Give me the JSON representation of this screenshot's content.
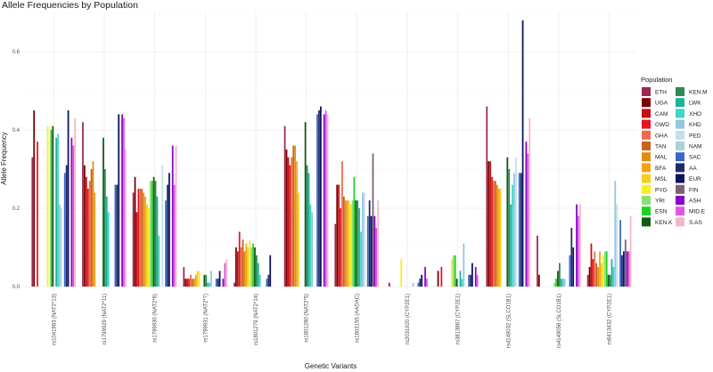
{
  "chart_data": {
    "type": "bar",
    "title": "Allele Frequencies by Population",
    "xlabel": "Genetic Variants",
    "ylabel": "Allele Frequency",
    "ylim": [
      0,
      0.7
    ],
    "yticks": [
      0.0,
      0.2,
      0.4,
      0.6
    ],
    "ytick_labels": [
      "0.0",
      "0.2",
      "0.4",
      "0.6"
    ],
    "grid": true,
    "legend_title": "Population",
    "legend_position": "right",
    "categories": [
      "rs1041983 (NAT2*13)",
      "rs1799929 (NAT2*11)",
      "rs1799930 (NAT2*6)",
      "rs1799931 (NAT2*7)",
      "rs1801279 (NAT2*14)",
      "rs1801280 (NAT2*5)",
      "rs1803155 (AADAC)",
      "rs2031920 (CYP2E1)",
      "rs3813867 (CYP2E1)",
      "rs4149032 (SLCO1B1)",
      "rs4149056 (SLCO1B1)",
      "rs6413432 (CYP2E1)"
    ],
    "series": [
      {
        "name": "ETH",
        "color": "#9e2a4e",
        "values": [
          0.33,
          0.42,
          0.24,
          0.05,
          0.01,
          0.41,
          0.16,
          0.0,
          0.0,
          0.46,
          0.13,
          0.03
        ]
      },
      {
        "name": "UGA",
        "color": "#7a0000",
        "values": [
          0.45,
          0.31,
          0.28,
          0.02,
          0.1,
          0.35,
          0.26,
          0.0,
          0.04,
          0.32,
          0.03,
          0.05
        ]
      },
      {
        "name": "CAM",
        "color": "#c41010",
        "values": [
          0.0,
          0.28,
          0.19,
          0.02,
          0.09,
          0.33,
          0.26,
          0.01,
          0.0,
          0.32,
          0.0,
          0.11
        ]
      },
      {
        "name": "GWD",
        "color": "#e8141e",
        "values": [
          0.37,
          0.25,
          0.25,
          0.02,
          0.14,
          0.31,
          0.2,
          0.0,
          0.05,
          0.28,
          0.0,
          0.07
        ]
      },
      {
        "name": "GHA",
        "color": "#ef6b4c",
        "values": [
          0.0,
          0.27,
          0.25,
          0.03,
          0.1,
          0.33,
          0.32,
          0.0,
          0.0,
          0.27,
          0.0,
          0.09
        ]
      },
      {
        "name": "TAN",
        "color": "#c9621a",
        "values": [
          0.0,
          0.3,
          0.25,
          0.02,
          0.12,
          0.36,
          0.23,
          0.0,
          0.0,
          0.27,
          0.0,
          0.06
        ]
      },
      {
        "name": "MAL",
        "color": "#e08f0e",
        "values": [
          0.0,
          0.32,
          0.24,
          0.02,
          0.09,
          0.36,
          0.22,
          0.0,
          0.0,
          0.26,
          0.0,
          0.05
        ]
      },
      {
        "name": "BFA",
        "color": "#f0a318",
        "values": [
          0.0,
          0.24,
          0.23,
          0.03,
          0.11,
          0.32,
          0.22,
          0.0,
          0.0,
          0.25,
          0.0,
          0.09
        ]
      },
      {
        "name": "MSL",
        "color": "#f7ce1c",
        "values": [
          0.0,
          0.0,
          0.21,
          0.04,
          0.1,
          0.24,
          0.22,
          0.0,
          0.0,
          0.25,
          0.0,
          0.06
        ]
      },
      {
        "name": "PYG",
        "color": "#f7f01e",
        "values": [
          0.41,
          0.0,
          0.2,
          0.04,
          0.12,
          0.0,
          0.21,
          0.07,
          0.07,
          0.0,
          0.0,
          0.08
        ]
      },
      {
        "name": "YRI",
        "color": "#8fdc7a",
        "values": [
          0.0,
          0.0,
          0.27,
          0.0,
          0.1,
          0.0,
          0.22,
          0.0,
          0.08,
          0.0,
          0.01,
          0.09
        ]
      },
      {
        "name": "ESN",
        "color": "#21d121",
        "values": [
          0.4,
          0.0,
          0.27,
          0.0,
          0.11,
          0.0,
          0.28,
          0.0,
          0.08,
          0.0,
          0.02,
          0.09
        ]
      },
      {
        "name": "KEN.K",
        "color": "#0f5c12",
        "values": [
          0.41,
          0.38,
          0.28,
          0.03,
          0.1,
          0.42,
          0.22,
          0.0,
          0.02,
          0.33,
          0.04,
          0.03
        ]
      },
      {
        "name": "KEN.M",
        "color": "#2e8b57",
        "values": [
          0.0,
          0.3,
          0.27,
          0.03,
          0.08,
          0.31,
          0.22,
          0.0,
          0.0,
          0.3,
          0.06,
          0.03
        ]
      },
      {
        "name": "LWK",
        "color": "#1eb39c",
        "values": [
          0.38,
          0.23,
          0.23,
          0.01,
          0.06,
          0.29,
          0.2,
          0.0,
          0.04,
          0.21,
          0.02,
          0.07
        ]
      },
      {
        "name": "XHO",
        "color": "#3ed6c8",
        "values": [
          0.39,
          0.19,
          0.13,
          0.01,
          0.03,
          0.21,
          0.14,
          0.0,
          0.02,
          0.26,
          0.02,
          0.05
        ]
      },
      {
        "name": "KHD",
        "color": "#8fc8e0",
        "values": [
          0.21,
          0.0,
          0.0,
          0.04,
          0.0,
          0.19,
          0.24,
          0.01,
          0.11,
          0.29,
          0.02,
          0.27
        ]
      },
      {
        "name": "PED",
        "color": "#c3e0ea",
        "values": [
          0.2,
          0.0,
          0.31,
          0.0,
          0.0,
          0.0,
          0.24,
          0.0,
          0.0,
          0.33,
          0.0,
          0.21
        ]
      },
      {
        "name": "NAM",
        "color": "#a7d3dc",
        "values": [
          0.0,
          0.0,
          0.0,
          0.0,
          0.0,
          0.0,
          0.0,
          0.0,
          0.0,
          0.0,
          0.0,
          0.0
        ]
      },
      {
        "name": "SAC",
        "color": "#3a68c9",
        "values": [
          0.29,
          0.26,
          0.22,
          0.02,
          0.02,
          0.44,
          0.18,
          0.01,
          0.03,
          0.29,
          0.08,
          0.17
        ]
      },
      {
        "name": "AA",
        "color": "#1f2a6b",
        "values": [
          0.31,
          0.26,
          0.26,
          0.02,
          0.03,
          0.45,
          0.22,
          0.02,
          0.03,
          0.29,
          0.15,
          0.08
        ]
      },
      {
        "name": "EUR",
        "color": "#0a1560",
        "values": [
          0.45,
          0.44,
          0.29,
          0.04,
          0.08,
          0.46,
          0.18,
          0.03,
          0.06,
          0.68,
          0.1,
          0.09
        ]
      },
      {
        "name": "FIN",
        "color": "#7a6277",
        "values": [
          0.0,
          0.0,
          0.0,
          0.0,
          0.0,
          0.0,
          0.34,
          0.0,
          0.0,
          0.0,
          0.0,
          0.12
        ]
      },
      {
        "name": "ASH",
        "color": "#8b00c8",
        "values": [
          0.38,
          0.44,
          0.36,
          0.02,
          0.0,
          0.44,
          0.18,
          0.05,
          0.05,
          0.37,
          0.21,
          0.09
        ]
      },
      {
        "name": "MID.E",
        "color": "#e056e0",
        "values": [
          0.36,
          0.43,
          0.26,
          0.06,
          0.0,
          0.45,
          0.15,
          0.02,
          0.03,
          0.34,
          0.18,
          0.09
        ]
      },
      {
        "name": "S.AS",
        "color": "#f5b6c4",
        "values": [
          0.43,
          0.35,
          0.36,
          0.07,
          0.0,
          0.44,
          0.22,
          0.0,
          0.0,
          0.43,
          0.21,
          0.18
        ]
      }
    ]
  }
}
